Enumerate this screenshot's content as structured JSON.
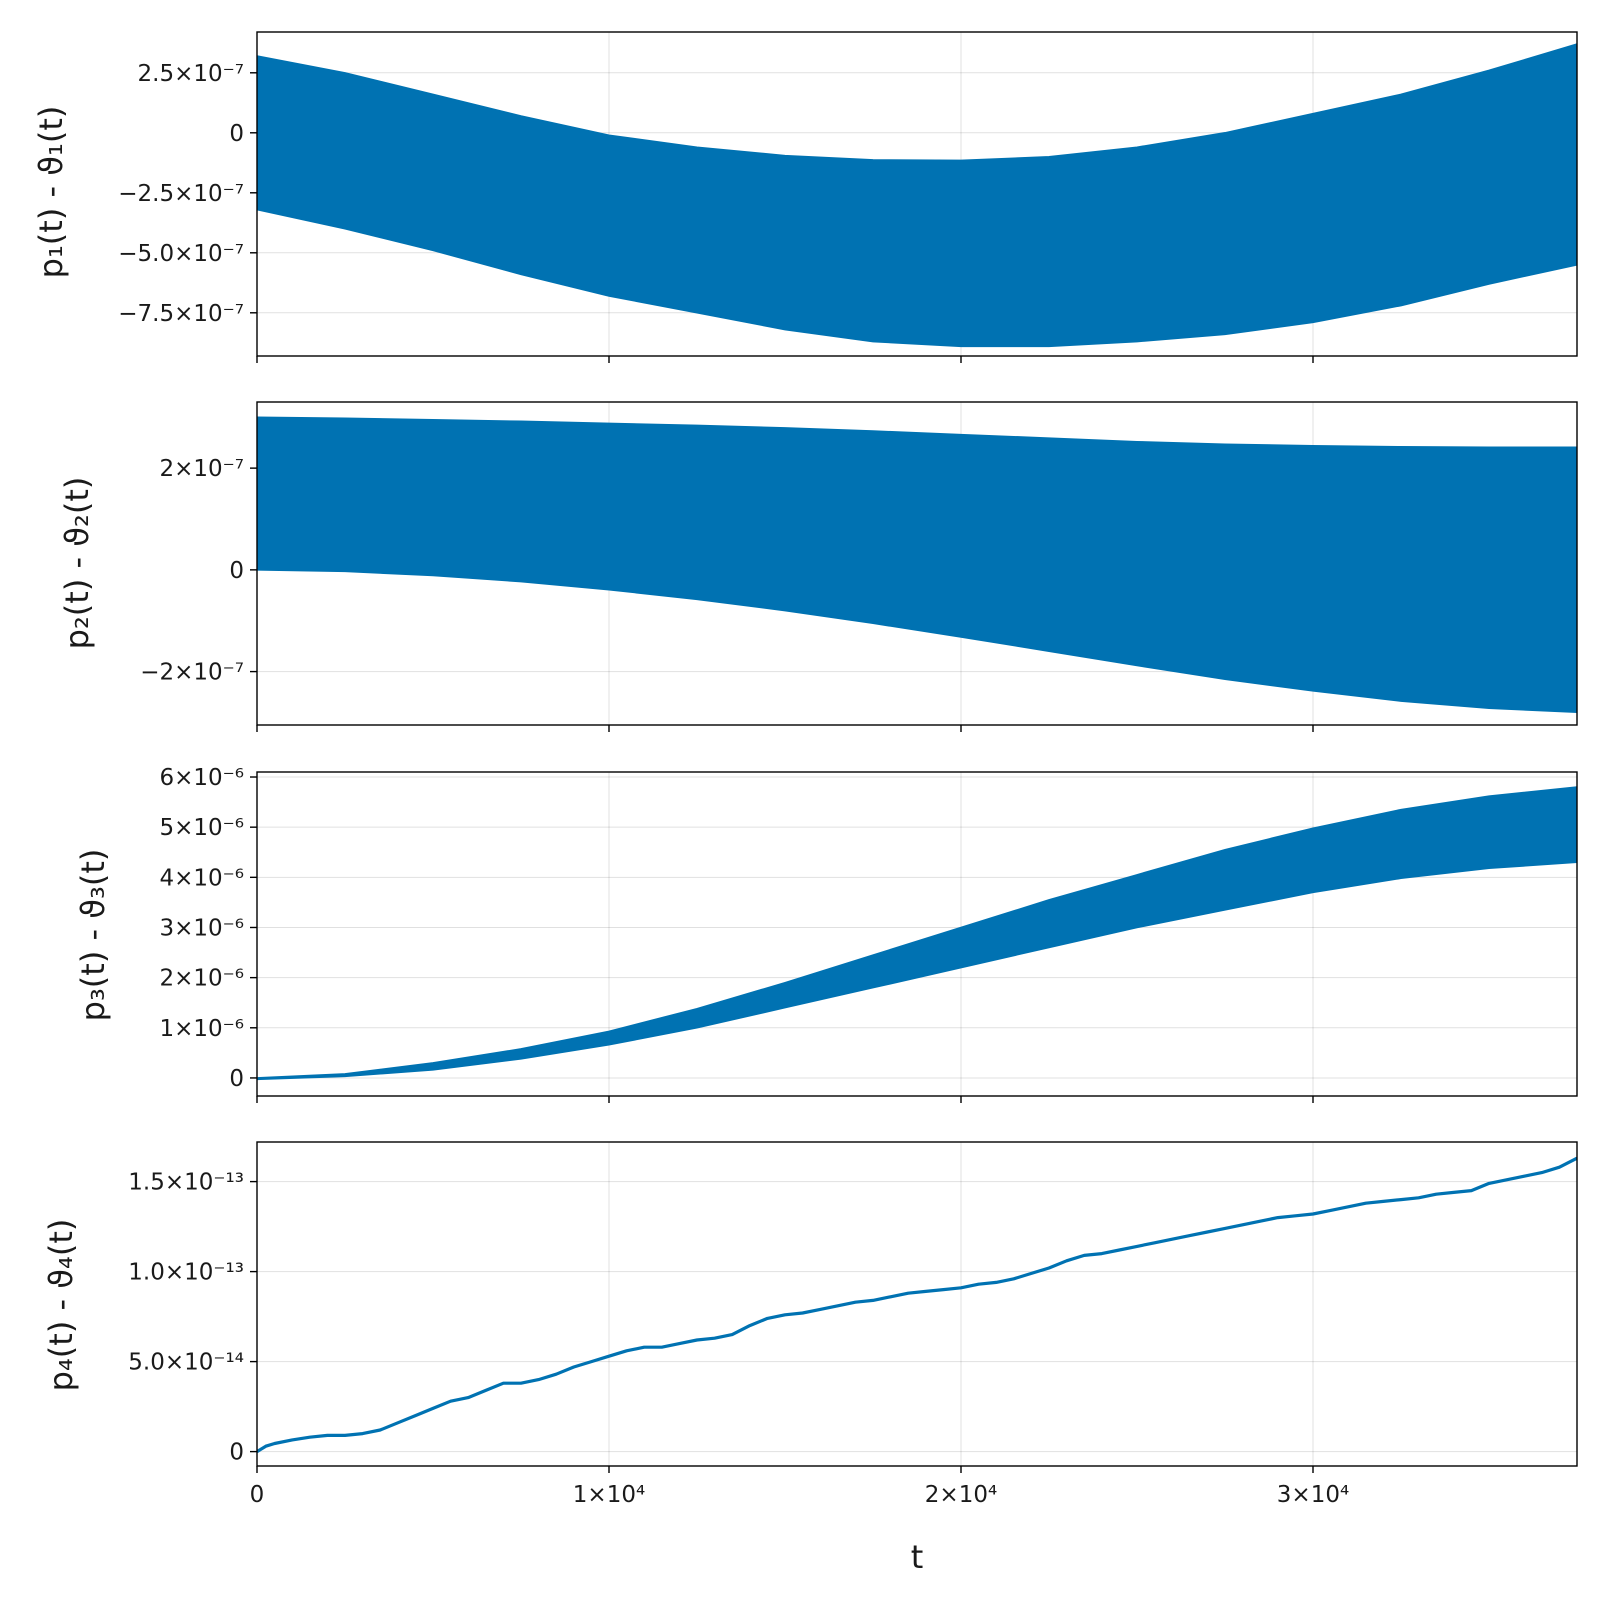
{
  "chart_data": [
    {
      "type": "area",
      "ylabel": "p₁(t) - ϑ₁(t)",
      "xlabel": "",
      "xlim": [
        0,
        37500
      ],
      "ylim": [
        -9.3e-07,
        4.2e-07
      ],
      "yticks": [
        2.5e-07,
        0,
        -2.5e-07,
        -5e-07,
        -7.5e-07
      ],
      "yticklabels": [
        "2.5×10⁻⁷",
        "0",
        "−2.5×10⁻⁷",
        "−5.0×10⁻⁷",
        "−7.5×10⁻⁷"
      ],
      "xticks": [
        0,
        10000,
        20000,
        30000
      ],
      "show_xticklabels": false,
      "grid": true,
      "color": "#0072b2",
      "band": {
        "x": [
          0,
          2500,
          5000,
          7500,
          10000,
          12500,
          15000,
          17500,
          20000,
          22500,
          25000,
          27500,
          30000,
          32500,
          35000,
          37500
        ],
        "upper": [
          3.2e-07,
          2.5e-07,
          1.6e-07,
          7e-08,
          -1e-08,
          -6e-08,
          -9.5e-08,
          -1.13e-07,
          -1.15e-07,
          -1e-07,
          -6e-08,
          0.0,
          8e-08,
          1.6e-07,
          2.6e-07,
          3.7e-07
        ],
        "lower": [
          -3.2e-07,
          -4e-07,
          -4.9e-07,
          -5.9e-07,
          -6.8e-07,
          -7.5e-07,
          -8.2e-07,
          -8.7e-07,
          -8.9e-07,
          -8.9e-07,
          -8.7e-07,
          -8.4e-07,
          -7.9e-07,
          -7.2e-07,
          -6.3e-07,
          -5.5e-07
        ]
      }
    },
    {
      "type": "area",
      "ylabel": "p₂(t) - ϑ₂(t)",
      "xlabel": "",
      "xlim": [
        0,
        37500
      ],
      "ylim": [
        -3.05e-07,
        3.3e-07
      ],
      "yticks": [
        2e-07,
        0,
        -2e-07
      ],
      "yticklabels": [
        "2×10⁻⁷",
        "0",
        "−2×10⁻⁷"
      ],
      "xticks": [
        0,
        10000,
        20000,
        30000
      ],
      "show_xticklabels": false,
      "grid": true,
      "color": "#0072b2",
      "band": {
        "x": [
          0,
          2500,
          5000,
          7500,
          10000,
          12500,
          15000,
          17500,
          20000,
          22500,
          25000,
          27500,
          30000,
          32500,
          35000,
          37500
        ],
        "upper": [
          3e-07,
          2.98e-07,
          2.95e-07,
          2.92e-07,
          2.88e-07,
          2.84e-07,
          2.79e-07,
          2.73e-07,
          2.66e-07,
          2.59e-07,
          2.52e-07,
          2.47e-07,
          2.44e-07,
          2.42e-07,
          2.41e-07,
          2.41e-07
        ],
        "lower": [
          0.0,
          -3e-09,
          -1.1e-08,
          -2.3e-08,
          -3.9e-08,
          -5.8e-08,
          -8e-08,
          -1.05e-07,
          -1.32e-07,
          -1.6e-07,
          -1.88e-07,
          -2.15e-07,
          -2.38e-07,
          -2.58e-07,
          -2.72e-07,
          -2.8e-07
        ]
      }
    },
    {
      "type": "area",
      "ylabel": "p₃(t) - ϑ₃(t)",
      "xlabel": "",
      "xlim": [
        0,
        37500
      ],
      "ylim": [
        -3.6e-07,
        6.1e-06
      ],
      "yticks": [
        6e-06,
        5e-06,
        4e-06,
        3e-06,
        2e-06,
        1e-06,
        0
      ],
      "yticklabels": [
        "6×10⁻⁶",
        "5×10⁻⁶",
        "4×10⁻⁶",
        "3×10⁻⁶",
        "2×10⁻⁶",
        "1×10⁻⁶",
        "0"
      ],
      "xticks": [
        0,
        10000,
        20000,
        30000
      ],
      "show_xticklabels": false,
      "grid": true,
      "color": "#0072b2",
      "band": {
        "x": [
          0,
          2500,
          5000,
          7500,
          10000,
          12500,
          15000,
          17500,
          20000,
          22500,
          25000,
          27500,
          30000,
          32500,
          35000,
          37500
        ],
        "upper": [
          0.0,
          8e-08,
          3e-07,
          5.8e-07,
          9.3e-07,
          1.38e-06,
          1.9e-06,
          2.45e-06,
          3e-06,
          3.55e-06,
          4.05e-06,
          4.55e-06,
          4.98e-06,
          5.35e-06,
          5.62e-06,
          5.8e-06
        ],
        "lower": [
          -3e-08,
          3e-08,
          1.6e-07,
          3.8e-07,
          6.6e-07,
          1e-06,
          1.4e-06,
          1.8e-06,
          2.2e-06,
          2.6e-06,
          3e-06,
          3.35e-06,
          3.7e-06,
          3.98e-06,
          4.18e-06,
          4.3e-06
        ]
      }
    },
    {
      "type": "line",
      "ylabel": "p₄(t) - ϑ₄(t)",
      "xlabel": "t",
      "xlim": [
        0,
        37500
      ],
      "ylim": [
        -8e-15,
        1.72e-13
      ],
      "yticks": [
        1.5e-13,
        1e-13,
        5e-14,
        0
      ],
      "yticklabels": [
        "1.5×10⁻¹³",
        "1.0×10⁻¹³",
        "5.0×10⁻¹⁴",
        "0"
      ],
      "xticks": [
        0,
        10000,
        20000,
        30000
      ],
      "xticklabels": [
        "0",
        "1×10⁴",
        "2×10⁴",
        "3×10⁴"
      ],
      "show_xticklabels": true,
      "grid": true,
      "color": "#0072b2",
      "series": [
        {
          "x": [
            0,
            250,
            500,
            1000,
            1500,
            2000,
            2500,
            3000,
            3500,
            4000,
            4500,
            5000,
            5500,
            6000,
            6500,
            7000,
            7500,
            8000,
            8500,
            9000,
            9500,
            10000,
            10500,
            11000,
            11500,
            12000,
            12500,
            13000,
            13500,
            14000,
            14500,
            15000,
            15500,
            16000,
            16500,
            17000,
            17500,
            18000,
            18500,
            19000,
            19500,
            20000,
            20500,
            21000,
            21500,
            22000,
            22500,
            23000,
            23500,
            24000,
            24500,
            25000,
            25500,
            26000,
            26500,
            27000,
            27500,
            28000,
            28500,
            29000,
            29500,
            30000,
            30500,
            31000,
            31500,
            32000,
            32500,
            33000,
            33500,
            34000,
            34500,
            35000,
            35500,
            36000,
            36500,
            37000,
            37500
          ],
          "values": [
            0.0,
            3e-15,
            4.5e-15,
            6.5e-15,
            8e-15,
            9e-15,
            9e-15,
            1e-14,
            1.2e-14,
            1.6e-14,
            2e-14,
            2.4e-14,
            2.8e-14,
            3e-14,
            3.4e-14,
            3.8e-14,
            3.8e-14,
            4e-14,
            4.3e-14,
            4.7e-14,
            5e-14,
            5.3e-14,
            5.6e-14,
            5.8e-14,
            5.8e-14,
            6e-14,
            6.2e-14,
            6.3e-14,
            6.5e-14,
            7e-14,
            7.4e-14,
            7.6e-14,
            7.7e-14,
            7.9e-14,
            8.1e-14,
            8.3e-14,
            8.4e-14,
            8.6e-14,
            8.8e-14,
            8.9e-14,
            9e-14,
            9.1e-14,
            9.3e-14,
            9.4e-14,
            9.6e-14,
            9.9e-14,
            1.02e-13,
            1.06e-13,
            1.09e-13,
            1.1e-13,
            1.12e-13,
            1.14e-13,
            1.16e-13,
            1.18e-13,
            1.2e-13,
            1.22e-13,
            1.24e-13,
            1.26e-13,
            1.28e-13,
            1.3e-13,
            1.31e-13,
            1.32e-13,
            1.34e-13,
            1.36e-13,
            1.38e-13,
            1.39e-13,
            1.4e-13,
            1.41e-13,
            1.43e-13,
            1.44e-13,
            1.45e-13,
            1.49e-13,
            1.51e-13,
            1.53e-13,
            1.55e-13,
            1.58e-13,
            1.63e-13
          ]
        }
      ]
    }
  ]
}
